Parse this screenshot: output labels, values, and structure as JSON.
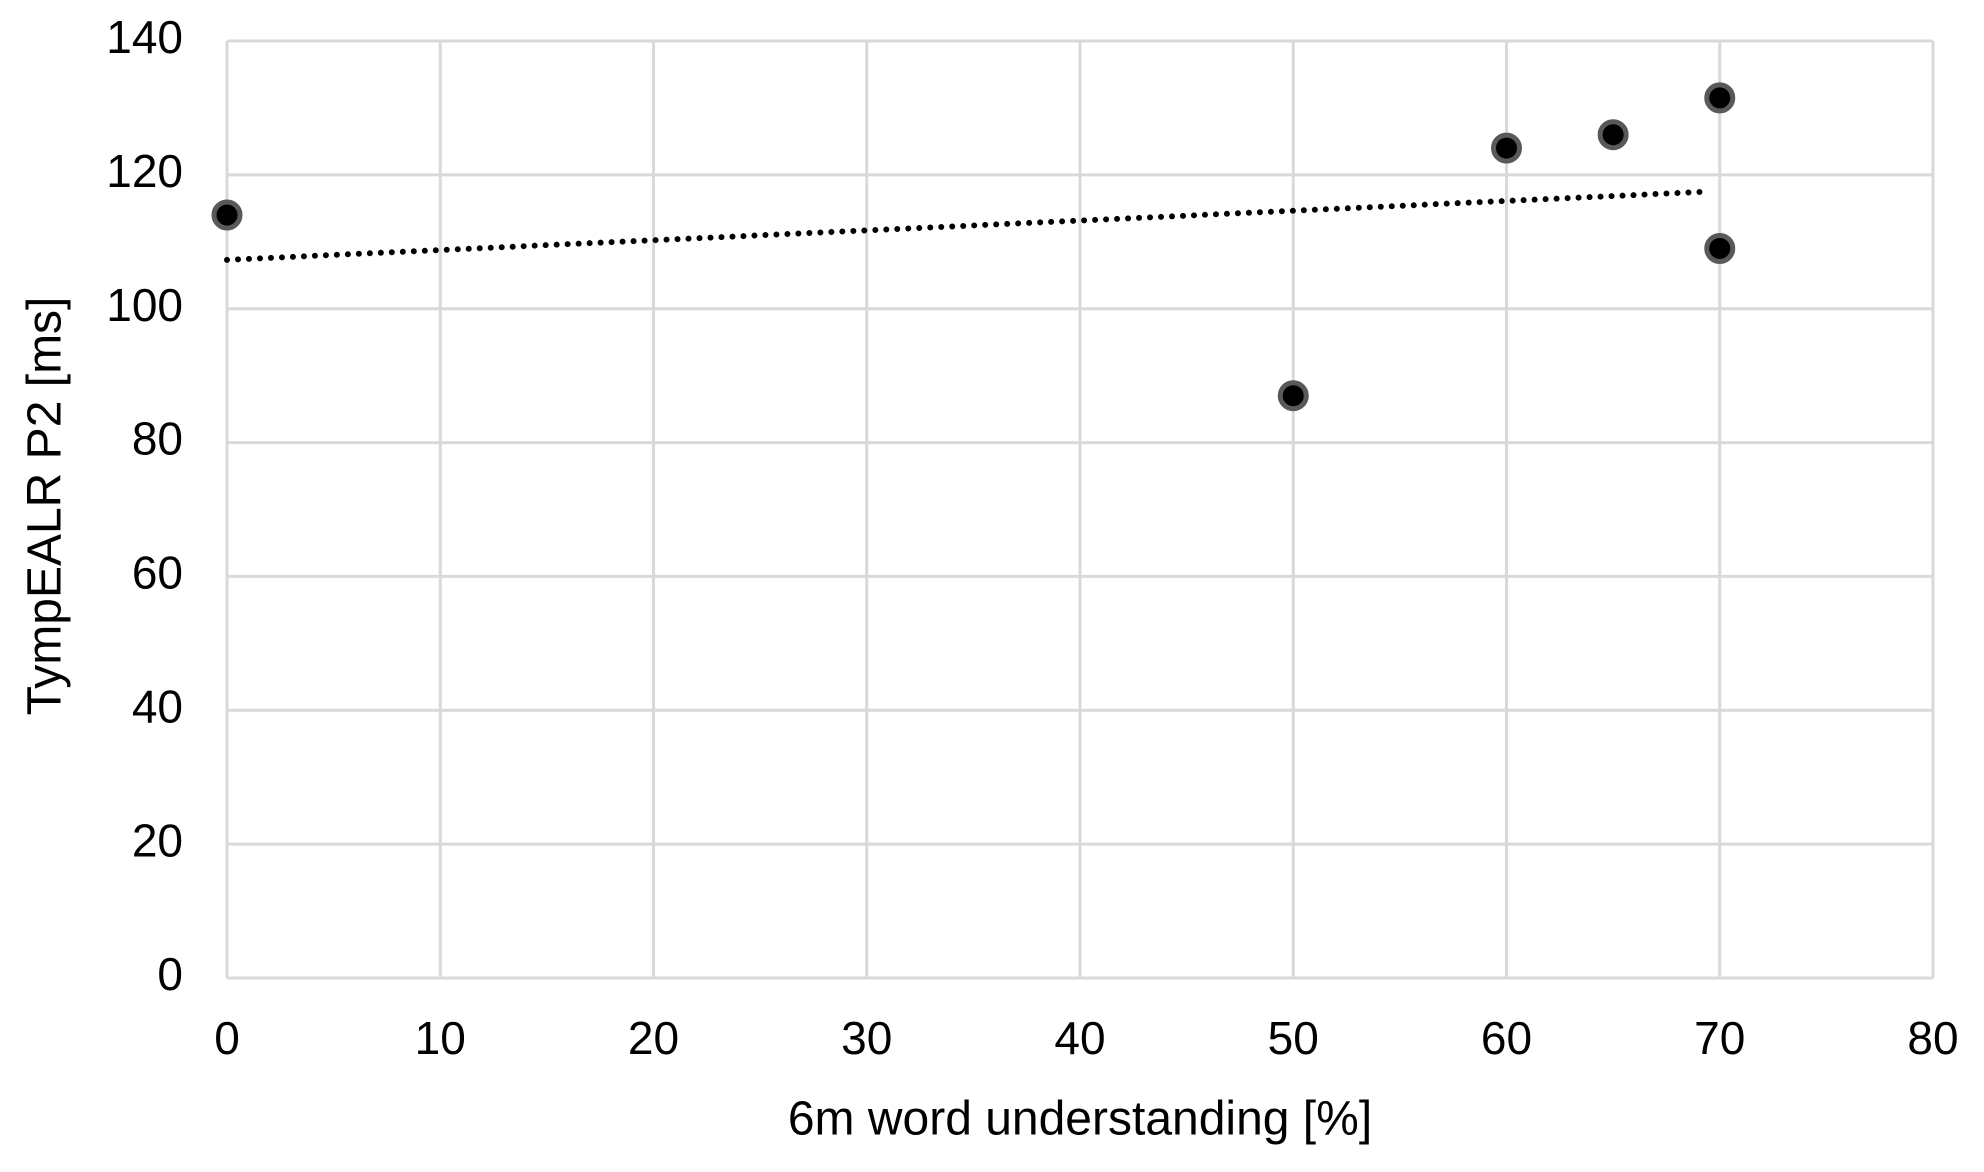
{
  "chart_data": {
    "type": "scatter",
    "x_label": "6m word understanding [%]",
    "y_label": "TympEALR P2 [ms]",
    "xlim": [
      0,
      80
    ],
    "xticks": [
      0,
      10,
      20,
      30,
      40,
      50,
      60,
      70,
      80
    ],
    "ylim": [
      0,
      140
    ],
    "yticks": [
      0,
      20,
      40,
      60,
      80,
      100,
      120,
      140
    ],
    "grid": true,
    "series": [
      {
        "color": "#000000",
        "x": [
          0,
          50,
          60,
          65,
          70,
          70
        ],
        "values": [
          114,
          87,
          124,
          126,
          131.5,
          109
        ]
      }
    ],
    "trendline": {
      "color": "#000000",
      "x": [
        0,
        69.5
      ],
      "values": [
        107.3,
        117.5
      ]
    }
  }
}
